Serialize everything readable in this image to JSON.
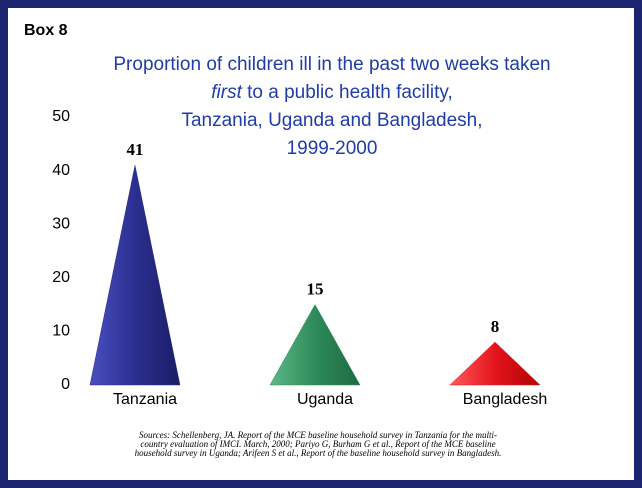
{
  "chart_data": {
    "type": "triangle",
    "box_label": "Box 8",
    "title_lines": [
      [
        "Proportion of children ill in the past two weeks taken"
      ],
      [
        "first",
        " to a public health facility,"
      ],
      [
        "Tanzania, Uganda and Bangladesh,"
      ],
      [
        "1999-2000"
      ]
    ],
    "categories": [
      "Tanzania",
      "Uganda",
      "Bangladesh"
    ],
    "values": [
      41,
      15,
      8
    ],
    "colors": [
      "#2b2f8f",
      "#2e8b5a",
      "#e4151c"
    ],
    "ylim": [
      0,
      50
    ],
    "yticks": [
      0,
      10,
      20,
      30,
      40,
      50
    ],
    "grid": false,
    "sources": [
      "Sources:  Schellenberg, JA.  Report of the MCE baseline household survey in Tanzania for the multi-",
      "country evaluation of IMCI.  March, 2000; Pariyo G, Burham G et al., Report of the MCE baseline",
      "household survey in Uganda; Arifeen S et al., Report of the baseline household survey in Bangladesh."
    ]
  }
}
